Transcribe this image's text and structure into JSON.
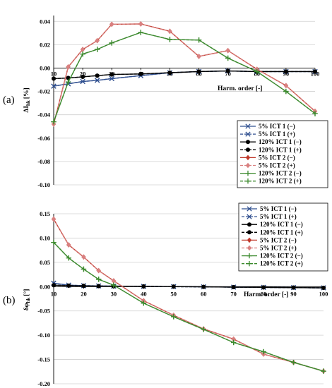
{
  "chart_data": [
    {
      "type": "line",
      "panel_label": "(a)",
      "xlabel": "Harm. order [-]",
      "ylabel": "ΔI",
      "ylabel_sub": "hk",
      "ylabel_unit": "[%]",
      "x": [
        10,
        15,
        20,
        25,
        30,
        40,
        50,
        60,
        70,
        80,
        90,
        100
      ],
      "xlim": [
        10,
        100
      ],
      "xticks": [
        "10",
        "20",
        "30",
        "40",
        "50",
        "60",
        "70",
        "80",
        "90",
        "100"
      ],
      "ylim": [
        -0.1,
        0.045
      ],
      "yticks": [
        "0.04",
        "0.02",
        "0.00",
        "-0.02",
        "-0.04",
        "-0.06",
        "-0.08",
        "-0.10"
      ],
      "grid": true,
      "legend_position": "lower-right",
      "series": [
        {
          "name": "5% ICT 1 (−)",
          "color": "#2f4f8f",
          "marker": "x",
          "dash": "solid",
          "values": [
            -0.0155,
            -0.0135,
            -0.0115,
            -0.0105,
            -0.009,
            -0.0065,
            -0.004,
            -0.003,
            -0.0025,
            -0.003,
            -0.003,
            -0.003
          ]
        },
        {
          "name": "5% ICT 1 (+)",
          "color": "#2f4f8f",
          "marker": "x",
          "dash": "dashed",
          "values": [
            -0.0155,
            -0.0135,
            -0.0115,
            -0.0105,
            -0.009,
            -0.0065,
            -0.004,
            -0.003,
            -0.0025,
            -0.003,
            -0.003,
            -0.003
          ]
        },
        {
          "name": "120% ICT 1 (−)",
          "color": "#000000",
          "marker": "circle",
          "dash": "solid",
          "values": [
            -0.009,
            -0.0085,
            -0.0075,
            -0.0065,
            -0.0055,
            -0.005,
            -0.004,
            -0.003,
            -0.0025,
            -0.003,
            -0.003,
            -0.003
          ]
        },
        {
          "name": "120% ICT 1 (+)",
          "color": "#000000",
          "marker": "circle",
          "dash": "dashed",
          "values": [
            -0.009,
            -0.0085,
            -0.0075,
            -0.0065,
            -0.0055,
            -0.005,
            -0.004,
            -0.003,
            -0.0025,
            -0.003,
            -0.003,
            -0.003
          ]
        },
        {
          "name": "5% ICT 2 (−)",
          "color": "#c0392b",
          "marker": "diamond",
          "dash": "solid",
          "values": [
            -0.048,
            0.001,
            0.016,
            0.0235,
            0.0375,
            0.0378,
            0.0315,
            0.01,
            0.015,
            -0.001,
            -0.015,
            -0.037
          ]
        },
        {
          "name": "5% ICT 2 (+)",
          "color": "#d98080",
          "marker": "diamond",
          "dash": "dashed",
          "values": [
            -0.048,
            0.001,
            0.016,
            0.0235,
            0.0375,
            0.0378,
            0.0315,
            0.01,
            0.015,
            -0.001,
            -0.015,
            -0.037
          ]
        },
        {
          "name": "120% ICT 2 (−)",
          "color": "#3c8a2e",
          "marker": "plus",
          "dash": "solid",
          "values": [
            -0.046,
            -0.012,
            0.012,
            0.016,
            0.0215,
            0.0305,
            0.0245,
            0.024,
            0.0085,
            -0.003,
            -0.02,
            -0.039
          ]
        },
        {
          "name": "120% ICT 2 (+)",
          "color": "#3c8a2e",
          "marker": "plus",
          "dash": "dashed",
          "values": [
            -0.046,
            -0.012,
            0.012,
            0.016,
            0.0215,
            0.0305,
            0.0245,
            0.024,
            0.0085,
            -0.003,
            -0.02,
            -0.039
          ]
        }
      ]
    },
    {
      "type": "line",
      "panel_label": "(b)",
      "xlabel": "Harm. order [-]",
      "ylabel": "δφ",
      "ylabel_sub": "hk",
      "ylabel_unit": "[°]",
      "x": [
        10,
        15,
        20,
        25,
        30,
        40,
        50,
        60,
        70,
        80,
        90,
        100
      ],
      "xlim": [
        10,
        100
      ],
      "xticks": [
        "10",
        "20",
        "30",
        "40",
        "50",
        "60",
        "70",
        "80",
        "90",
        "100"
      ],
      "ylim": [
        -0.2,
        0.15
      ],
      "yticks": [
        "0.15",
        "0.10",
        "0.05",
        "0.00",
        "-0.05",
        "-0.10",
        "-0.15",
        "-0.20"
      ],
      "grid": true,
      "legend_position": "top-right",
      "series": [
        {
          "name": "5% ICT 1 (−)",
          "color": "#2f4f8f",
          "marker": "x",
          "dash": "solid",
          "values": [
            0.007,
            0.003,
            0.002,
            0.0015,
            0.001,
            0.0005,
            0.0,
            -0.0005,
            -0.001,
            -0.0015,
            -0.002,
            -0.0025
          ]
        },
        {
          "name": "5% ICT 1 (+)",
          "color": "#2f4f8f",
          "marker": "x",
          "dash": "dashed",
          "values": [
            0.007,
            0.003,
            0.002,
            0.0015,
            0.001,
            0.0005,
            0.0,
            -0.0005,
            -0.001,
            -0.0015,
            -0.002,
            -0.0025
          ]
        },
        {
          "name": "120% ICT 1 (−)",
          "color": "#000000",
          "marker": "circle",
          "dash": "solid",
          "values": [
            0.003,
            0.002,
            0.0015,
            0.001,
            0.0008,
            0.0005,
            0.0,
            -0.0005,
            -0.001,
            -0.0015,
            -0.002,
            -0.0025
          ]
        },
        {
          "name": "120% ICT 1 (+)",
          "color": "#000000",
          "marker": "circle",
          "dash": "dashed",
          "values": [
            0.003,
            0.002,
            0.0015,
            0.001,
            0.0008,
            0.0005,
            0.0,
            -0.0005,
            -0.001,
            -0.0015,
            -0.002,
            -0.0025
          ]
        },
        {
          "name": "5% ICT 2 (−)",
          "color": "#c0392b",
          "marker": "diamond",
          "dash": "solid",
          "values": [
            0.139,
            0.086,
            0.061,
            0.033,
            0.012,
            -0.029,
            -0.059,
            -0.087,
            -0.108,
            -0.139,
            -0.156,
            -0.174
          ]
        },
        {
          "name": "5% ICT 2 (+)",
          "color": "#d98080",
          "marker": "diamond",
          "dash": "dashed",
          "values": [
            0.139,
            0.086,
            0.061,
            0.033,
            0.012,
            -0.029,
            -0.059,
            -0.087,
            -0.108,
            -0.139,
            -0.156,
            -0.174
          ]
        },
        {
          "name": "120% ICT 2 (−)",
          "color": "#3c8a2e",
          "marker": "plus",
          "dash": "solid",
          "values": [
            0.091,
            0.059,
            0.036,
            0.015,
            0.003,
            -0.034,
            -0.062,
            -0.088,
            -0.115,
            -0.134,
            -0.156,
            -0.174
          ]
        },
        {
          "name": "120% ICT 2 (+)",
          "color": "#3c8a2e",
          "marker": "plus",
          "dash": "dashed",
          "values": [
            0.091,
            0.059,
            0.036,
            0.015,
            0.003,
            -0.034,
            -0.062,
            -0.088,
            -0.115,
            -0.134,
            -0.156,
            -0.174
          ]
        }
      ]
    }
  ]
}
